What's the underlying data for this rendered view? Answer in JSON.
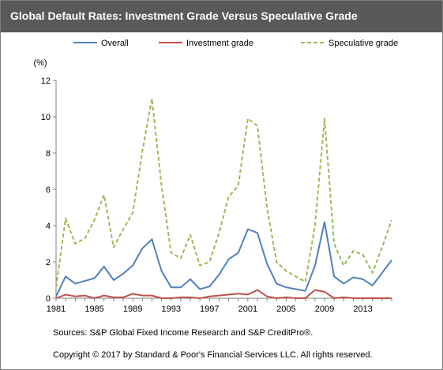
{
  "title": "Global Default Rates:  Investment Grade Versus  Speculative Grade",
  "sources": "Sources: S&P Global Fixed Income Research and S&P CreditPro®.",
  "copyright": "Copyright © 2017 by Standard & Poor's Financial Services LLC. All rights reserved.",
  "colors": {
    "header": "#595959",
    "overall": "#4f81bd",
    "investment": "#c0504d",
    "speculative": "#9bbb59"
  },
  "chart_data": {
    "type": "line",
    "title": "",
    "ylabel": "(%)",
    "xlabel": "",
    "ylim": [
      0,
      12
    ],
    "yticks": [
      0,
      2,
      4,
      6,
      8,
      10,
      12
    ],
    "xlim": [
      1981,
      2016
    ],
    "xticks": [
      "1981",
      "1985",
      "1989",
      "1993",
      "1997",
      "2001",
      "2005",
      "2009",
      "2013"
    ],
    "grid": false,
    "legend": "top",
    "x": [
      1981,
      1982,
      1983,
      1984,
      1985,
      1986,
      1987,
      1988,
      1989,
      1990,
      1991,
      1992,
      1993,
      1994,
      1995,
      1996,
      1997,
      1998,
      1999,
      2000,
      2001,
      2002,
      2003,
      2004,
      2005,
      2006,
      2007,
      2008,
      2009,
      2010,
      2011,
      2012,
      2013,
      2014,
      2015,
      2016
    ],
    "series": [
      {
        "name": "Overall",
        "style": "solid",
        "values": [
          0.1,
          1.2,
          0.8,
          0.95,
          1.1,
          1.75,
          1.0,
          1.35,
          1.8,
          2.75,
          3.25,
          1.5,
          0.6,
          0.6,
          1.05,
          0.5,
          0.65,
          1.3,
          2.15,
          2.5,
          3.8,
          3.6,
          1.9,
          0.8,
          0.6,
          0.5,
          0.4,
          1.8,
          4.2,
          1.2,
          0.8,
          1.15,
          1.05,
          0.7,
          1.4,
          2.1
        ]
      },
      {
        "name": "Investment grade",
        "style": "solid",
        "values": [
          0.0,
          0.2,
          0.1,
          0.15,
          0.0,
          0.15,
          0.05,
          0.05,
          0.25,
          0.15,
          0.15,
          0.0,
          0.0,
          0.05,
          0.05,
          0.0,
          0.1,
          0.15,
          0.2,
          0.25,
          0.2,
          0.45,
          0.1,
          0.0,
          0.05,
          0.0,
          0.0,
          0.45,
          0.35,
          0.0,
          0.05,
          0.0,
          0.0,
          0.0,
          0.0,
          0.0
        ]
      },
      {
        "name": "Speculative grade",
        "style": "dashed",
        "values": [
          0.6,
          4.4,
          3.0,
          3.3,
          4.3,
          5.7,
          2.8,
          3.8,
          4.7,
          8.1,
          11.0,
          6.2,
          2.5,
          2.2,
          3.5,
          1.8,
          2.0,
          3.6,
          5.6,
          6.2,
          9.9,
          9.5,
          5.0,
          2.0,
          1.5,
          1.2,
          0.9,
          4.0,
          9.9,
          3.0,
          1.8,
          2.6,
          2.4,
          1.4,
          2.8,
          4.3
        ]
      }
    ]
  }
}
